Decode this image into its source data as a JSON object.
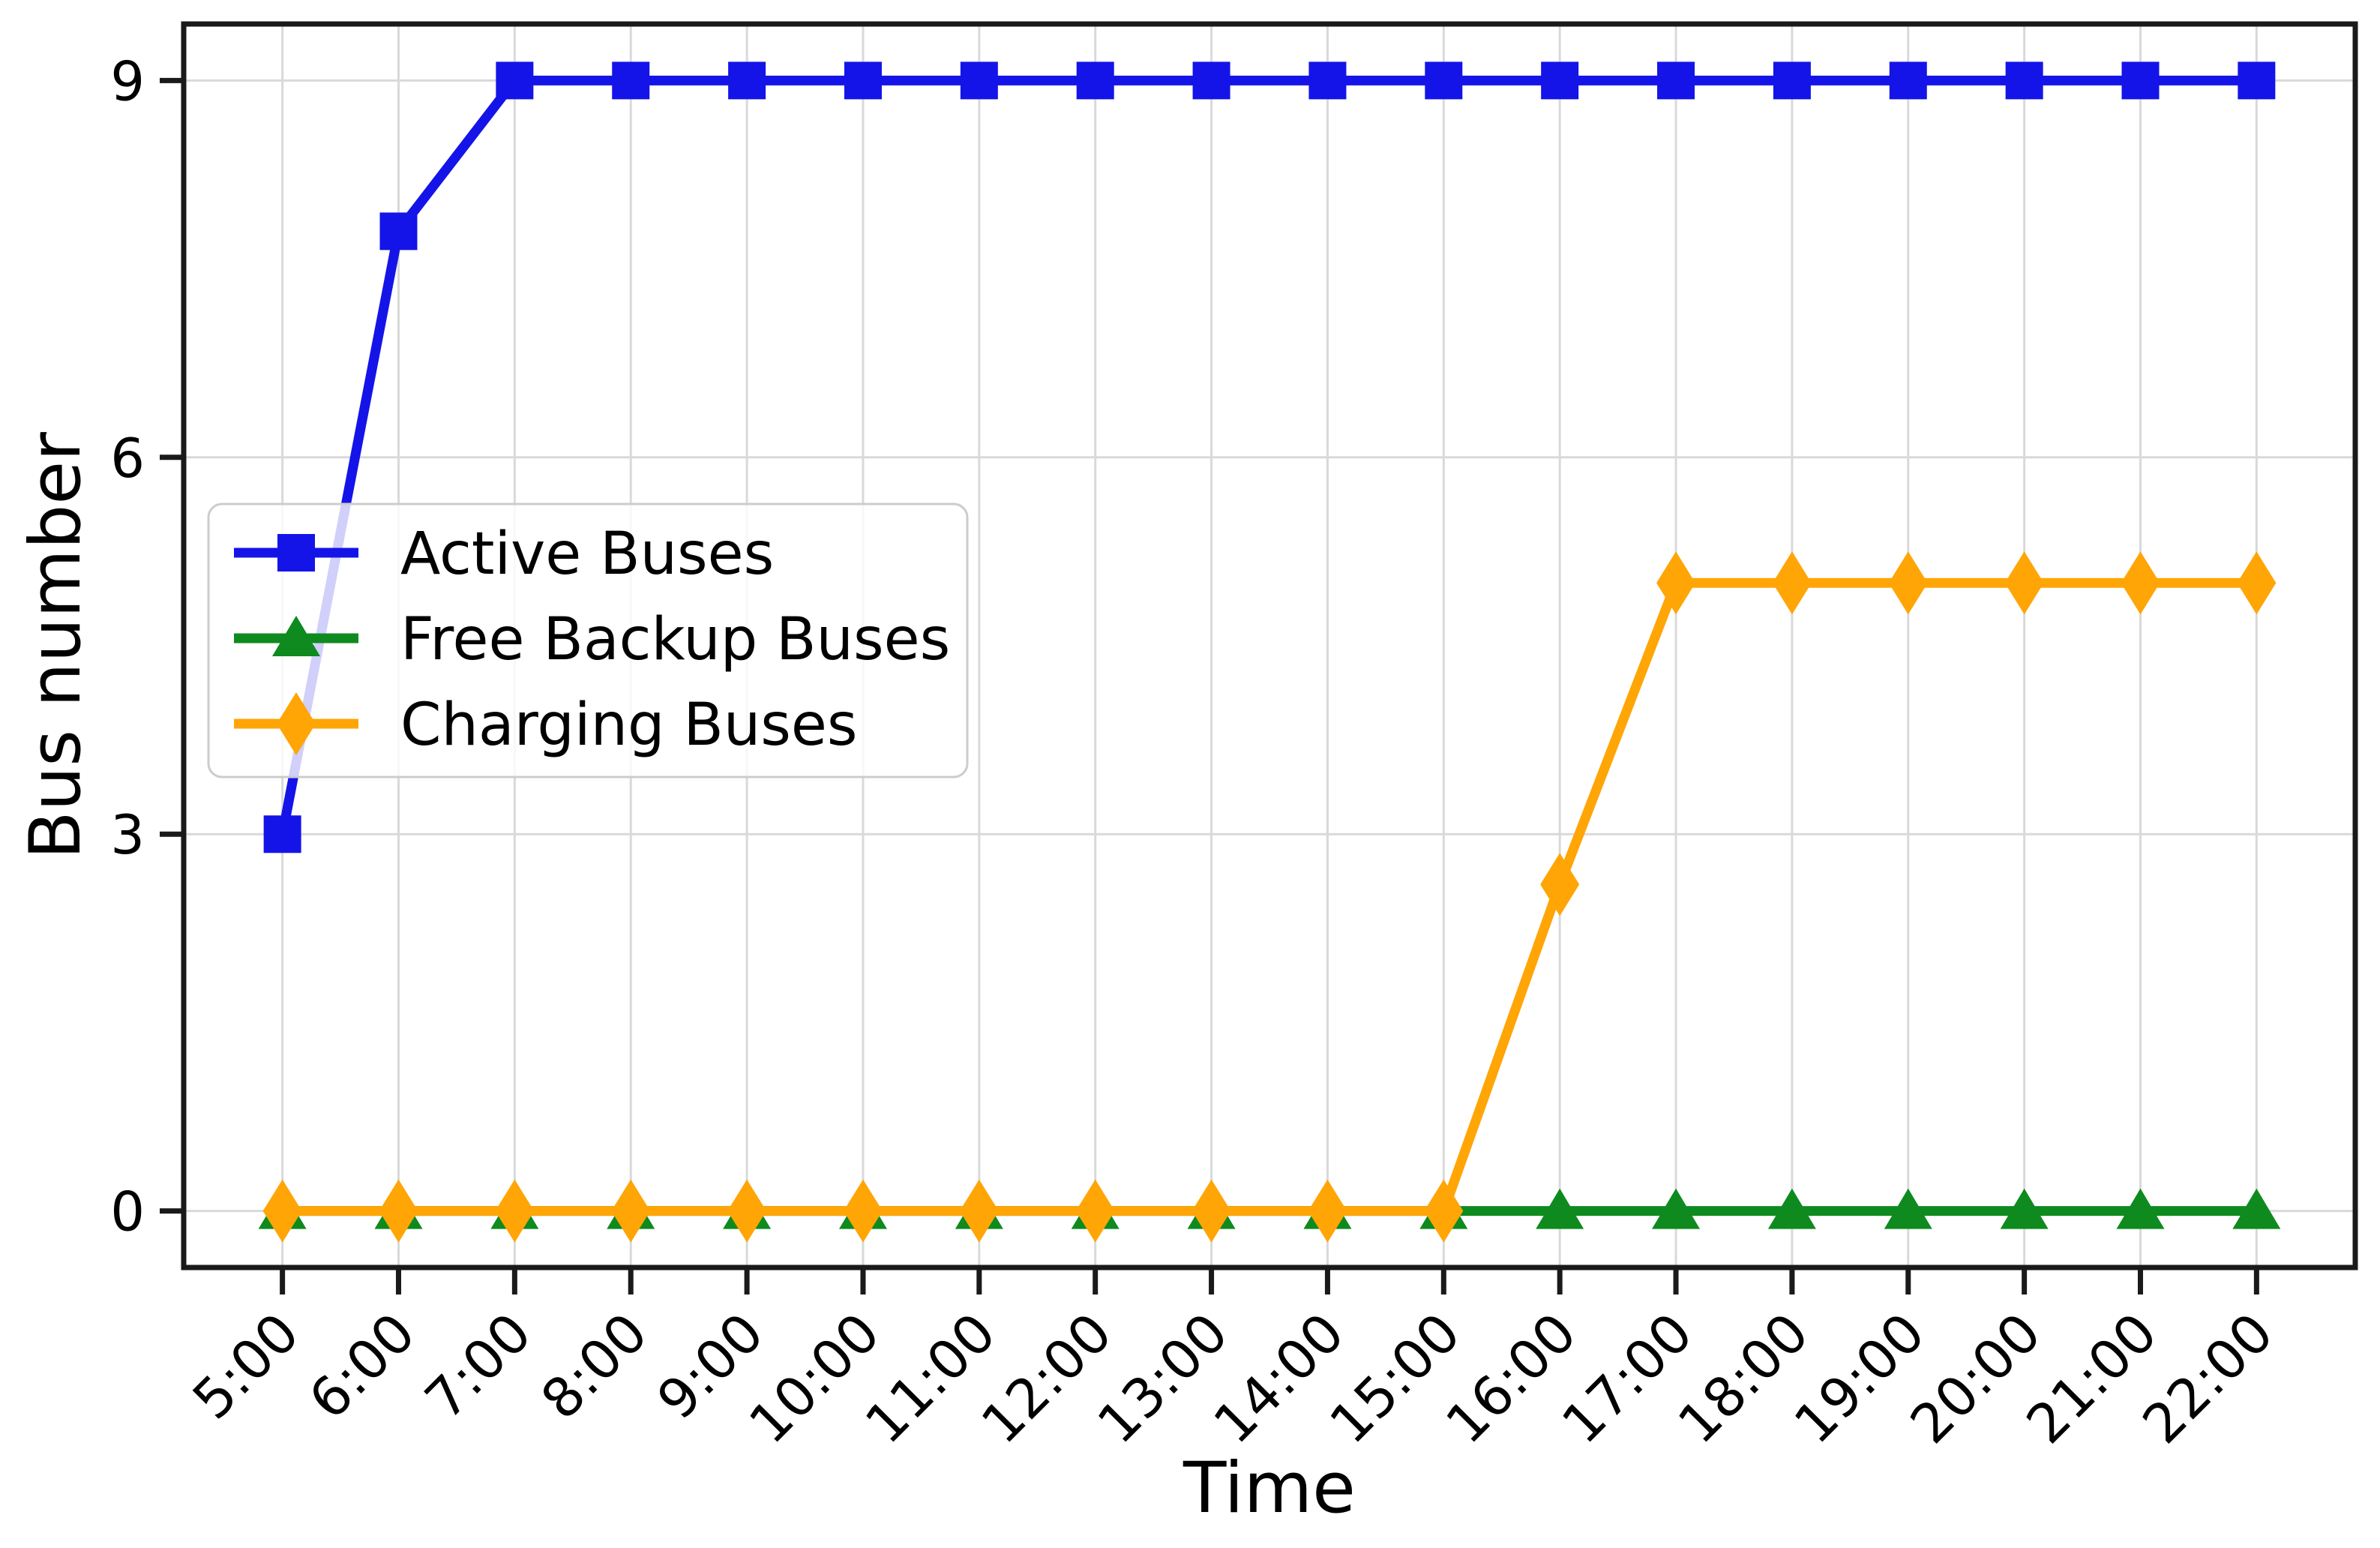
{
  "chart_data": {
    "type": "line",
    "title": "",
    "xlabel": "Time",
    "ylabel": "Bus number",
    "categories": [
      "5:00",
      "6:00",
      "7:00",
      "8:00",
      "9:00",
      "10:00",
      "11:00",
      "12:00",
      "13:00",
      "14:00",
      "15:00",
      "16:00",
      "17:00",
      "18:00",
      "19:00",
      "20:00",
      "21:00",
      "22:00"
    ],
    "yticks": [
      0,
      3,
      6,
      9
    ],
    "ylim": [
      0,
      9
    ],
    "grid": true,
    "legend_position": "upper-left-inside",
    "series": [
      {
        "name": "Active Buses",
        "color": "#1414e8",
        "marker": "square",
        "values": [
          3,
          7.8,
          9,
          9,
          9,
          9,
          9,
          9,
          9,
          9,
          9,
          9,
          9,
          9,
          9,
          9,
          9,
          9
        ]
      },
      {
        "name": "Free Backup Buses",
        "color": "#0e8a1e",
        "marker": "triangle-up",
        "values": [
          0,
          0,
          0,
          0,
          0,
          0,
          0,
          0,
          0,
          0,
          0,
          0,
          0,
          0,
          0,
          0,
          0,
          0
        ]
      },
      {
        "name": "Charging Buses",
        "color": "#ffa506",
        "marker": "diamond",
        "values": [
          0,
          0,
          0,
          0,
          0,
          0,
          0,
          0,
          0,
          0,
          0,
          2.6,
          5,
          5,
          5,
          5,
          5,
          5
        ]
      }
    ],
    "style": {
      "grid_color": "#d9d9d9",
      "spine_color": "#1a1a1a",
      "tick_color": "#1a1a1a",
      "legend_border_color": "#cccccc",
      "legend_background": "#ffffff"
    }
  }
}
